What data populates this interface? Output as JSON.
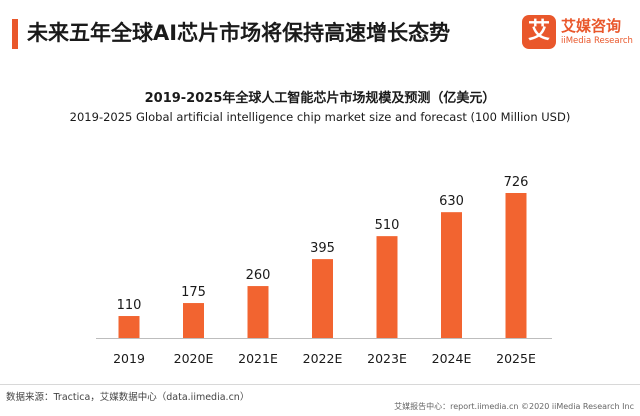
{
  "header": {
    "title": "未来五年全球AI芯片市场将保持高速增长态势",
    "accent_color": "#e9572b"
  },
  "logo": {
    "mark": "艾",
    "name_cn": "艾媒咨询",
    "name_en": "iiMedia Research"
  },
  "chart_data": {
    "type": "bar",
    "title": "2019-2025年全球人工智能芯片市场规模及预测（亿美元）",
    "subtitle": "2019-2025 Global artificial intelligence chip market size and forecast (100 Million USD)",
    "categories": [
      "2019",
      "2020E",
      "2021E",
      "2022E",
      "2023E",
      "2024E",
      "2025E"
    ],
    "values": [
      110,
      175,
      260,
      395,
      510,
      630,
      726
    ],
    "bar_color": "#f26430",
    "ylim": [
      0,
      726
    ],
    "grid": false,
    "legend": "none"
  },
  "footer": {
    "source": "数据来源：Tractica，艾媒数据中心（data.iimedia.cn）",
    "report": "艾媒报告中心：report.iimedia.cn  ©2020  iiMedia Research  Inc"
  }
}
